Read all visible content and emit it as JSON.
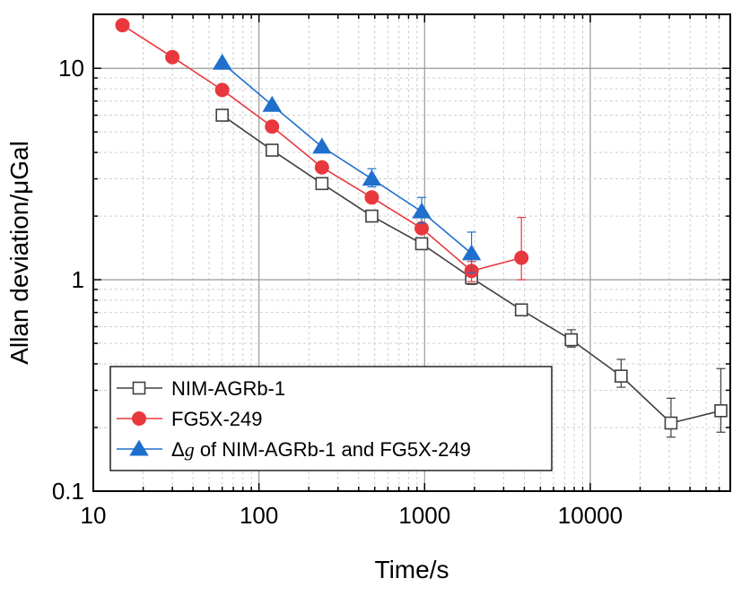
{
  "chart_data": {
    "type": "scatter",
    "xscale": "log",
    "yscale": "log",
    "xlim": [
      10,
      70000
    ],
    "ylim": [
      0.1,
      18
    ],
    "grid": true,
    "xlabel": "Time/s",
    "ylabel": "Allan deviation/μGal",
    "x_ticks": [
      {
        "value": 10,
        "label": "10"
      },
      {
        "value": 100,
        "label": "100"
      },
      {
        "value": 1000,
        "label": "1000"
      },
      {
        "value": 10000,
        "label": "10000"
      }
    ],
    "y_ticks": [
      {
        "value": 0.1,
        "label": "0.1"
      },
      {
        "value": 1,
        "label": "1"
      },
      {
        "value": 10,
        "label": "10"
      }
    ],
    "legend": {
      "position": "bottom-left",
      "entries": [
        {
          "prefix": "",
          "text": "NIM-AGRb-1"
        },
        {
          "prefix": "",
          "text": "FG5X-249"
        },
        {
          "prefix": "Δg",
          "text": " of NIM-AGRb-1 and FG5X-249"
        }
      ]
    },
    "series": [
      {
        "name": "NIM-AGRb-1",
        "color": "#404040",
        "marker": "open-square",
        "x": [
          60,
          120,
          240,
          480,
          960,
          1920,
          3840,
          7680,
          15360,
          30720,
          61440
        ],
        "y": [
          6.0,
          4.1,
          2.85,
          2.0,
          1.48,
          1.02,
          0.72,
          0.52,
          0.35,
          0.21,
          0.24
        ],
        "err_low": [
          0.0,
          0.0,
          0.0,
          0.0,
          0.0,
          0.07,
          0.0,
          0.04,
          0.04,
          0.03,
          0.05
        ],
        "err_high": [
          0.0,
          0.0,
          0.0,
          0.0,
          0.0,
          0.07,
          0.0,
          0.06,
          0.07,
          0.065,
          0.14
        ]
      },
      {
        "name": "FG5X-249",
        "color": "#e8383d",
        "marker": "filled-circle",
        "x": [
          15,
          30,
          60,
          120,
          240,
          480,
          960,
          1920,
          3840
        ],
        "y": [
          16.0,
          11.3,
          7.9,
          5.3,
          3.4,
          2.45,
          1.75,
          1.1,
          1.27
        ],
        "err_low": [
          0.0,
          0.0,
          0.0,
          0.0,
          0.0,
          0.0,
          0.0,
          0.12,
          0.27
        ],
        "err_high": [
          0.0,
          0.0,
          0.0,
          0.0,
          0.0,
          0.0,
          0.0,
          0.12,
          0.7
        ]
      },
      {
        "name": "Δg of NIM-AGRb-1 and FG5X-249",
        "color": "#1f6fcc",
        "marker": "filled-triangle",
        "x": [
          60,
          120,
          240,
          480,
          960,
          1920
        ],
        "y": [
          10.6,
          6.7,
          4.25,
          3.0,
          2.1,
          1.33
        ],
        "err_low": [
          0.0,
          0.0,
          0.0,
          0.25,
          0.25,
          0.25
        ],
        "err_high": [
          0.0,
          0.0,
          0.0,
          0.35,
          0.35,
          0.35
        ]
      }
    ]
  }
}
